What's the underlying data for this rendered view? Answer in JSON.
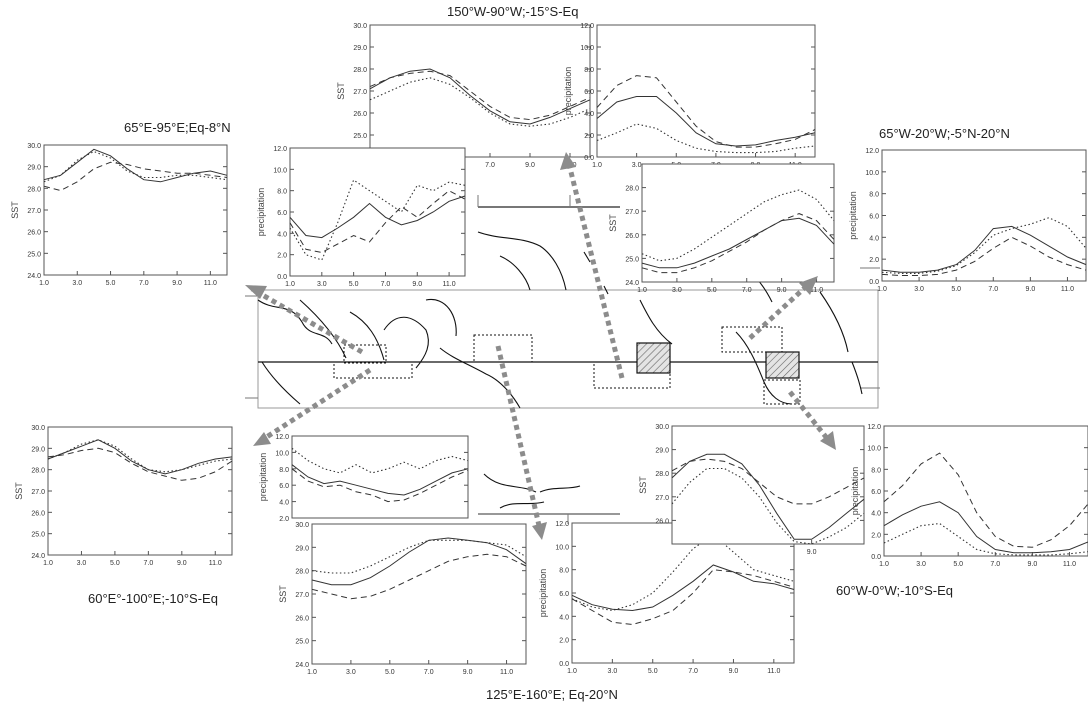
{
  "regions": [
    {
      "id": "r1",
      "title": "150°W-90°W;-15°S-Eq"
    },
    {
      "id": "r2",
      "title": "65°E-95°E;Eq-8°N"
    },
    {
      "id": "r3",
      "title": "65°W-20°W;-5°N-20°N"
    },
    {
      "id": "r4",
      "title": "60°E°-100°E;-10°S-Eq"
    },
    {
      "id": "r5",
      "title": "125°E-160°E; Eq-20°N"
    },
    {
      "id": "r6",
      "title": "60°W-0°W;-10°S-Eq"
    }
  ],
  "chart_data": [
    {
      "id": "sst-150w90w",
      "region": "r1",
      "type": "line",
      "ylabel": "SST",
      "ylim": [
        24,
        30
      ],
      "yticks": [
        "24.0",
        "25.0",
        "26.0",
        "27.0",
        "28.0",
        "29.0",
        "30.0"
      ],
      "x": [
        1,
        2,
        3,
        4,
        5,
        6,
        7,
        8,
        9,
        10,
        11,
        12
      ],
      "xticks": [
        "1.0",
        "3.0",
        "5.0",
        "7.0",
        "9.0",
        "11.0"
      ],
      "series": [
        {
          "style": "solid",
          "values": [
            27.1,
            27.6,
            27.9,
            28.0,
            27.6,
            26.8,
            26.1,
            25.6,
            25.5,
            25.8,
            26.2,
            26.6
          ]
        },
        {
          "style": "dashed",
          "values": [
            27.2,
            27.6,
            27.8,
            27.9,
            27.7,
            27.0,
            26.3,
            25.8,
            25.7,
            25.9,
            26.3,
            26.7
          ]
        },
        {
          "style": "dotted",
          "values": [
            26.6,
            27.0,
            27.4,
            27.6,
            27.3,
            26.7,
            26.0,
            25.5,
            25.4,
            25.5,
            25.8,
            26.2
          ]
        }
      ]
    },
    {
      "id": "pr-150w90w",
      "region": "r1",
      "type": "line",
      "ylabel": "precipitation",
      "ylim": [
        0,
        12
      ],
      "yticks": [
        "0.0",
        "2.0",
        "4.0",
        "6.0",
        "8.0",
        "10.0",
        "12.0"
      ],
      "x": [
        1,
        2,
        3,
        4,
        5,
        6,
        7,
        8,
        9,
        10,
        11,
        12
      ],
      "xticks": [
        "1.0",
        "3.0",
        "5.0",
        "7.0",
        "9.0",
        "11.0"
      ],
      "series": [
        {
          "style": "solid",
          "values": [
            3.5,
            5.0,
            5.5,
            5.5,
            4.0,
            2.2,
            1.2,
            1.0,
            1.1,
            1.5,
            1.8,
            2.2
          ]
        },
        {
          "style": "dashed",
          "values": [
            4.5,
            6.5,
            7.4,
            7.2,
            5.0,
            2.8,
            1.4,
            0.9,
            0.9,
            1.2,
            1.6,
            2.5
          ]
        },
        {
          "style": "dotted",
          "values": [
            1.5,
            2.2,
            3.0,
            2.6,
            1.5,
            0.8,
            0.5,
            0.4,
            0.4,
            0.5,
            0.8,
            1.0
          ]
        }
      ]
    },
    {
      "id": "sst-65e95e",
      "region": "r2",
      "type": "line",
      "ylabel": "SST",
      "ylim": [
        24,
        30
      ],
      "yticks": [
        "24.0",
        "25.0",
        "26.0",
        "27.0",
        "28.0",
        "29.0",
        "30.0"
      ],
      "x": [
        1,
        2,
        3,
        4,
        5,
        6,
        7,
        8,
        9,
        10,
        11,
        12
      ],
      "xticks": [
        "1.0",
        "3.0",
        "5.0",
        "7.0",
        "9.0",
        "11.0"
      ],
      "series": [
        {
          "style": "solid",
          "values": [
            28.4,
            28.6,
            29.2,
            29.8,
            29.5,
            28.9,
            28.4,
            28.3,
            28.5,
            28.7,
            28.8,
            28.6
          ]
        },
        {
          "style": "dashed",
          "values": [
            28.1,
            27.9,
            28.3,
            28.9,
            29.2,
            29.1,
            28.9,
            28.8,
            28.7,
            28.7,
            28.6,
            28.5
          ]
        },
        {
          "style": "dotted",
          "values": [
            28.3,
            28.6,
            29.3,
            29.7,
            29.4,
            28.8,
            28.5,
            28.5,
            28.6,
            28.6,
            28.5,
            28.4
          ]
        }
      ]
    },
    {
      "id": "pr-65e95e",
      "region": "r2",
      "type": "line",
      "ylabel": "precipitation",
      "ylim": [
        0,
        12
      ],
      "yticks": [
        "0.0",
        "2.0",
        "4.0",
        "6.0",
        "8.0",
        "10.0",
        "12.0"
      ],
      "x": [
        1,
        2,
        3,
        4,
        5,
        6,
        7,
        8,
        9,
        10,
        11,
        12
      ],
      "xticks": [
        "1.0",
        "3.0",
        "5.0",
        "7.0",
        "9.0",
        "11.0"
      ],
      "series": [
        {
          "style": "solid",
          "values": [
            5.5,
            3.8,
            3.6,
            4.5,
            5.5,
            6.8,
            5.5,
            4.8,
            5.2,
            6.0,
            7.0,
            7.5
          ]
        },
        {
          "style": "dashed",
          "values": [
            5.0,
            2.5,
            2.2,
            3.0,
            3.8,
            3.2,
            5.0,
            6.5,
            5.5,
            6.8,
            8.0,
            7.2
          ]
        },
        {
          "style": "dotted",
          "values": [
            4.5,
            2.0,
            1.5,
            5.0,
            9.0,
            8.0,
            7.0,
            6.0,
            8.5,
            8.0,
            8.8,
            8.5
          ]
        }
      ]
    },
    {
      "id": "sst-65w20w",
      "region": "r3",
      "type": "line",
      "ylabel": "SST",
      "ylim": [
        24,
        29
      ],
      "yticks": [
        "24.0",
        "25.0",
        "26.0",
        "27.0",
        "28.0"
      ],
      "x": [
        1,
        2,
        3,
        4,
        5,
        6,
        7,
        8,
        9,
        10,
        11,
        12
      ],
      "xticks": [
        "1.0",
        "3.0",
        "5.0",
        "7.0",
        "9.0",
        "11.0"
      ],
      "series": [
        {
          "style": "solid",
          "values": [
            24.8,
            24.6,
            24.6,
            24.8,
            25.1,
            25.4,
            25.8,
            26.2,
            26.6,
            26.7,
            26.4,
            25.6
          ]
        },
        {
          "style": "dashed",
          "values": [
            24.6,
            24.4,
            24.4,
            24.6,
            24.9,
            25.3,
            25.7,
            26.2,
            26.6,
            26.9,
            26.6,
            25.8
          ]
        },
        {
          "style": "dotted",
          "values": [
            25.2,
            24.9,
            25.0,
            25.4,
            25.9,
            26.4,
            26.9,
            27.4,
            27.7,
            27.9,
            27.5,
            26.6
          ]
        }
      ]
    },
    {
      "id": "pr-65w20w",
      "region": "r3",
      "type": "line",
      "ylabel": "precipitation",
      "ylim": [
        0,
        12
      ],
      "yticks": [
        "0.0",
        "2.0",
        "4.0",
        "6.0",
        "8.0",
        "10.0",
        "12.0"
      ],
      "x": [
        1,
        2,
        3,
        4,
        5,
        6,
        7,
        8,
        9,
        10,
        11,
        12
      ],
      "xticks": [
        "1.0",
        "3.0",
        "5.0",
        "7.0",
        "9.0",
        "11.0"
      ],
      "series": [
        {
          "style": "solid",
          "values": [
            1.0,
            0.8,
            0.8,
            1.0,
            1.5,
            2.8,
            4.8,
            5.0,
            4.2,
            3.2,
            2.2,
            1.5
          ]
        },
        {
          "style": "dashed",
          "values": [
            0.6,
            0.5,
            0.5,
            0.6,
            1.0,
            1.8,
            3.0,
            4.0,
            3.2,
            2.2,
            1.5,
            1.0
          ]
        },
        {
          "style": "dotted",
          "values": [
            0.8,
            0.7,
            0.7,
            0.9,
            1.4,
            2.6,
            4.2,
            4.8,
            5.2,
            5.8,
            5.0,
            3.0
          ]
        }
      ]
    },
    {
      "id": "sst-60e100e",
      "region": "r4",
      "type": "line",
      "ylabel": "SST",
      "ylim": [
        24,
        30
      ],
      "yticks": [
        "24.0",
        "25.0",
        "26.0",
        "27.0",
        "28.0",
        "29.0",
        "30.0"
      ],
      "x": [
        1,
        2,
        3,
        4,
        5,
        6,
        7,
        8,
        9,
        10,
        11,
        12
      ],
      "xticks": [
        "1.0",
        "3.0",
        "5.0",
        "7.0",
        "9.0",
        "11.0"
      ],
      "series": [
        {
          "style": "solid",
          "values": [
            28.5,
            28.8,
            29.1,
            29.4,
            29.0,
            28.4,
            28.0,
            27.8,
            28.0,
            28.3,
            28.5,
            28.6
          ]
        },
        {
          "style": "dashed",
          "values": [
            28.6,
            28.7,
            28.9,
            29.0,
            28.8,
            28.3,
            27.9,
            27.7,
            27.5,
            27.6,
            27.9,
            28.4
          ]
        },
        {
          "style": "dotted",
          "values": [
            28.5,
            28.8,
            29.2,
            29.4,
            29.1,
            28.5,
            28.0,
            27.9,
            28.0,
            28.2,
            28.4,
            28.5
          ]
        }
      ]
    },
    {
      "id": "pr-60e100e",
      "region": "r4",
      "type": "line",
      "ylabel": "precipitation",
      "ylim": [
        2,
        12
      ],
      "yticks": [
        "2.0",
        "4.0",
        "6.0",
        "8.0",
        "10.0",
        "12.0"
      ],
      "x": [
        1,
        2,
        3,
        4,
        5,
        6,
        7,
        8,
        9,
        10,
        11,
        12
      ],
      "xticks": [],
      "series": [
        {
          "style": "solid",
          "values": [
            8.5,
            7.0,
            6.2,
            6.5,
            6.0,
            5.5,
            5.0,
            4.8,
            5.5,
            6.5,
            7.5,
            8.0
          ]
        },
        {
          "style": "dashed",
          "values": [
            8.0,
            6.5,
            5.8,
            6.0,
            5.2,
            4.8,
            4.0,
            4.2,
            5.0,
            6.0,
            7.0,
            7.8
          ]
        },
        {
          "style": "dotted",
          "values": [
            10.5,
            9.0,
            8.0,
            7.5,
            8.5,
            7.5,
            8.0,
            8.8,
            8.0,
            9.0,
            9.5,
            9.0
          ]
        }
      ]
    },
    {
      "id": "sst-125e160e",
      "region": "r5",
      "type": "line",
      "ylabel": "SST",
      "ylim": [
        24,
        30
      ],
      "yticks": [
        "24.0",
        "25.0",
        "26.0",
        "27.0",
        "28.0",
        "29.0",
        "30.0"
      ],
      "x": [
        1,
        2,
        3,
        4,
        5,
        6,
        7,
        8,
        9,
        10,
        11,
        12
      ],
      "xticks": [
        "1.0",
        "3.0",
        "5.0",
        "7.0",
        "9.0",
        "11.0"
      ],
      "series": [
        {
          "style": "solid",
          "values": [
            27.6,
            27.4,
            27.4,
            27.7,
            28.2,
            28.8,
            29.3,
            29.4,
            29.3,
            29.2,
            28.9,
            28.3
          ]
        },
        {
          "style": "dashed",
          "values": [
            27.2,
            27.0,
            26.8,
            26.9,
            27.2,
            27.6,
            28.0,
            28.4,
            28.6,
            28.7,
            28.6,
            28.2
          ]
        },
        {
          "style": "dotted",
          "values": [
            28.0,
            27.9,
            27.9,
            28.2,
            28.6,
            29.0,
            29.3,
            29.3,
            29.3,
            29.2,
            29.1,
            28.6
          ]
        }
      ]
    },
    {
      "id": "pr-125e160e",
      "region": "r5",
      "type": "line",
      "ylabel": "precipitation",
      "ylim": [
        0,
        12
      ],
      "yticks": [
        "0.0",
        "2.0",
        "4.0",
        "6.0",
        "8.0",
        "10.0",
        "12.0"
      ],
      "x": [
        1,
        2,
        3,
        4,
        5,
        6,
        7,
        8,
        9,
        10,
        11,
        12
      ],
      "xticks": [
        "1.0",
        "3.0",
        "5.0",
        "7.0",
        "9.0",
        "11.0"
      ],
      "series": [
        {
          "style": "solid",
          "values": [
            5.8,
            5.0,
            4.6,
            4.5,
            4.8,
            5.8,
            7.0,
            8.4,
            7.8,
            7.0,
            6.8,
            6.3
          ]
        },
        {
          "style": "dashed",
          "values": [
            5.5,
            4.5,
            3.5,
            3.3,
            3.8,
            4.5,
            6.0,
            8.0,
            7.8,
            7.5,
            7.0,
            6.5
          ]
        },
        {
          "style": "dotted",
          "values": [
            5.5,
            4.8,
            4.5,
            5.0,
            6.0,
            7.8,
            9.8,
            11.0,
            9.5,
            8.0,
            7.5,
            7.0
          ]
        }
      ]
    },
    {
      "id": "sst-60w0w",
      "region": "r6",
      "type": "line",
      "ylabel": "SST",
      "ylim": [
        25,
        30
      ],
      "yticks": [
        "26.0",
        "27.0",
        "28.0",
        "29.0",
        "30.0"
      ],
      "x": [
        1,
        2,
        3,
        4,
        5,
        6,
        7,
        8,
        9,
        10,
        11,
        12
      ],
      "xticks": [
        "9.0"
      ],
      "series": [
        {
          "style": "solid",
          "values": [
            27.8,
            28.5,
            28.8,
            28.8,
            28.4,
            27.5,
            26.3,
            25.2,
            25.2,
            25.7,
            26.3,
            26.9
          ]
        },
        {
          "style": "dashed",
          "values": [
            28.1,
            28.5,
            28.6,
            28.5,
            28.2,
            27.6,
            27.0,
            26.7,
            26.7,
            27.0,
            27.4,
            27.8
          ]
        },
        {
          "style": "dotted",
          "values": [
            26.7,
            27.6,
            28.2,
            28.2,
            27.8,
            27.0,
            25.9,
            25.1,
            25.0,
            25.3,
            25.7,
            26.3
          ]
        }
      ]
    },
    {
      "id": "pr-60w0w",
      "region": "r6",
      "type": "line",
      "ylabel": "precipitation",
      "ylim": [
        0,
        12
      ],
      "yticks": [
        "0.0",
        "2.0",
        "4.0",
        "6.0",
        "8.0",
        "10.0",
        "12.0"
      ],
      "x": [
        1,
        2,
        3,
        4,
        5,
        6,
        7,
        8,
        9,
        10,
        11,
        12
      ],
      "xticks": [
        "1.0",
        "3.0",
        "5.0",
        "7.0",
        "9.0",
        "11.0"
      ],
      "series": [
        {
          "style": "solid",
          "values": [
            2.8,
            3.8,
            4.6,
            5.0,
            4.0,
            1.8,
            0.6,
            0.3,
            0.3,
            0.4,
            0.6,
            1.3
          ]
        },
        {
          "style": "dashed",
          "values": [
            5.0,
            6.5,
            8.5,
            9.5,
            7.5,
            4.0,
            1.8,
            0.9,
            0.8,
            1.5,
            2.8,
            4.8
          ]
        },
        {
          "style": "dotted",
          "values": [
            1.2,
            2.0,
            2.8,
            3.0,
            1.8,
            0.6,
            0.2,
            0.1,
            0.1,
            0.1,
            0.2,
            0.4
          ]
        }
      ]
    }
  ],
  "colors": {
    "arrow": "#8c8c8c",
    "axis": "#555555",
    "line": "#333333",
    "tick_text": "#333333",
    "coast": "#111111"
  }
}
